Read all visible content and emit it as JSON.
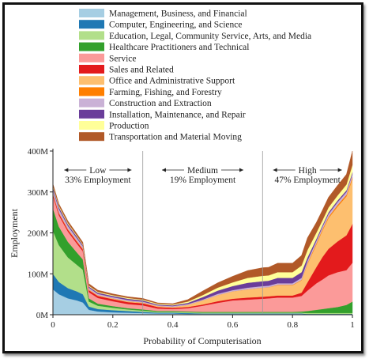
{
  "chart_data": {
    "type": "area",
    "stacked": true,
    "xlabel": "Probability of Computerisation",
    "ylabel": "Employment",
    "xlim": [
      0,
      1
    ],
    "ylim": [
      0,
      400
    ],
    "x_ticks": [
      "0",
      "0.2",
      "0.4",
      "0.6",
      "0.8",
      "1"
    ],
    "y_ticks": [
      "0M",
      "100M",
      "200M",
      "300M",
      "400M"
    ],
    "legend_position": "top",
    "x": [
      0,
      0.02,
      0.05,
      0.08,
      0.1,
      0.12,
      0.15,
      0.2,
      0.25,
      0.3,
      0.35,
      0.4,
      0.45,
      0.5,
      0.55,
      0.6,
      0.65,
      0.7,
      0.72,
      0.75,
      0.8,
      0.83,
      0.85,
      0.88,
      0.9,
      0.92,
      0.95,
      0.98,
      1.0
    ],
    "series": [
      {
        "name": "Management, Business, and Financial",
        "color": "#a6cee3",
        "values": [
          62,
          50,
          40,
          35,
          30,
          12,
          8,
          6,
          5,
          4,
          3,
          3,
          2,
          2,
          2,
          2,
          2,
          2,
          2,
          2,
          2,
          2,
          1,
          1,
          1,
          1,
          1,
          1,
          1
        ]
      },
      {
        "name": "Computer, Engineering, and Science",
        "color": "#1f78b4",
        "values": [
          38,
          30,
          25,
          22,
          20,
          8,
          6,
          5,
          4,
          3,
          2,
          2,
          2,
          1,
          1,
          1,
          1,
          1,
          1,
          1,
          1,
          1,
          1,
          1,
          1,
          1,
          1,
          1,
          1
        ]
      },
      {
        "name": "Education, Legal, Community Service, Arts, and Media",
        "color": "#b2df8a",
        "values": [
          105,
          90,
          75,
          65,
          60,
          12,
          8,
          6,
          4,
          3,
          2,
          2,
          2,
          2,
          2,
          2,
          2,
          2,
          2,
          2,
          2,
          2,
          2,
          2,
          2,
          2,
          2,
          2,
          2
        ]
      },
      {
        "name": "Healthcare Practitioners and Technical",
        "color": "#33a02c",
        "values": [
          55,
          45,
          38,
          30,
          25,
          8,
          5,
          4,
          3,
          3,
          2,
          2,
          2,
          2,
          2,
          2,
          2,
          2,
          2,
          2,
          2,
          3,
          5,
          8,
          10,
          12,
          15,
          20,
          28
        ]
      },
      {
        "name": "Service",
        "color": "#fb9a99",
        "values": [
          30,
          28,
          25,
          22,
          20,
          15,
          14,
          12,
          10,
          10,
          6,
          5,
          8,
          15,
          22,
          28,
          30,
          32,
          33,
          35,
          35,
          38,
          50,
          65,
          72,
          80,
          85,
          85,
          95
        ]
      },
      {
        "name": "Sales and Related",
        "color": "#e31a1c",
        "values": [
          5,
          5,
          5,
          5,
          5,
          5,
          5,
          5,
          5,
          5,
          4,
          3,
          3,
          3,
          4,
          4,
          5,
          5,
          5,
          5,
          5,
          8,
          20,
          40,
          55,
          65,
          75,
          85,
          95
        ]
      },
      {
        "name": "Office and Administrative Support",
        "color": "#fdbf6f",
        "values": [
          2,
          2,
          2,
          2,
          2,
          2,
          2,
          2,
          2,
          2,
          2,
          2,
          5,
          10,
          15,
          18,
          20,
          22,
          22,
          25,
          25,
          30,
          45,
          55,
          65,
          75,
          85,
          95,
          110
        ]
      },
      {
        "name": "Farming, Fishing, and Forestry",
        "color": "#ff7f00",
        "values": [
          0,
          0,
          0,
          0,
          0,
          0,
          0,
          0,
          0,
          0,
          0,
          0,
          0,
          0,
          0,
          0,
          0,
          0,
          0,
          1,
          1,
          1,
          2,
          3,
          3,
          3,
          4,
          4,
          4
        ]
      },
      {
        "name": "Construction and Extraction",
        "color": "#cab2d6",
        "values": [
          10,
          8,
          7,
          6,
          5,
          4,
          3,
          3,
          3,
          2,
          2,
          2,
          2,
          2,
          3,
          3,
          4,
          4,
          4,
          4,
          4,
          5,
          6,
          6,
          6,
          7,
          7,
          7,
          8
        ]
      },
      {
        "name": "Installation, Maintenance, and Repair",
        "color": "#6a3d9a",
        "values": [
          5,
          5,
          4,
          4,
          3,
          3,
          3,
          3,
          3,
          3,
          2,
          2,
          3,
          6,
          8,
          10,
          12,
          12,
          12,
          13,
          13,
          14,
          8,
          5,
          4,
          4,
          4,
          4,
          4
        ]
      },
      {
        "name": "Production",
        "color": "#ffff99",
        "values": [
          3,
          3,
          3,
          2,
          2,
          2,
          2,
          2,
          2,
          2,
          2,
          2,
          3,
          5,
          7,
          9,
          12,
          13,
          13,
          14,
          14,
          16,
          18,
          15,
          12,
          12,
          12,
          14,
          18
        ]
      },
      {
        "name": "Transportation and Material Moving",
        "color": "#b15928",
        "values": [
          5,
          5,
          5,
          5,
          5,
          5,
          4,
          3,
          3,
          3,
          2,
          2,
          5,
          10,
          12,
          15,
          18,
          20,
          20,
          22,
          22,
          25,
          30,
          25,
          25,
          25,
          25,
          25,
          34
        ]
      }
    ],
    "bands": [
      {
        "label": "Low",
        "subtitle": "33% Employment",
        "from": 0,
        "to": 0.3
      },
      {
        "label": "Medium",
        "subtitle": "19% Employment",
        "from": 0.3,
        "to": 0.7
      },
      {
        "label": "High",
        "subtitle": "47% Employment",
        "from": 0.7,
        "to": 1.0
      }
    ]
  }
}
